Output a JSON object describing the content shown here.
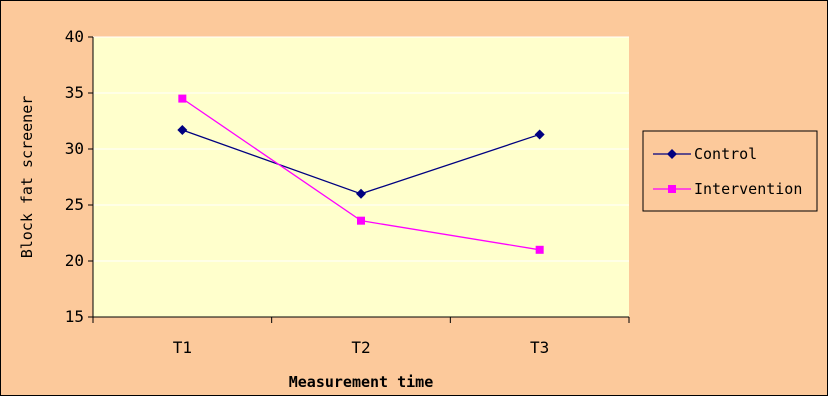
{
  "colors": {
    "background": "#fcc99b",
    "plot_area": "#ffffcc",
    "gridline": "#ffffff",
    "control": "#000080",
    "intervention": "#ff00ff"
  },
  "chart_data": {
    "type": "line",
    "title": "",
    "xlabel": "Measurement time",
    "ylabel": "Block fat screener",
    "categories": [
      "T1",
      "T2",
      "T3"
    ],
    "ylim": [
      15,
      40
    ],
    "yticks": [
      15,
      20,
      25,
      30,
      35,
      40
    ],
    "grid": true,
    "legend_position": "right",
    "series": [
      {
        "name": "Control",
        "values": [
          31.7,
          26.0,
          31.3
        ],
        "marker": "diamond",
        "color": "#000080"
      },
      {
        "name": "Intervention",
        "values": [
          34.5,
          23.6,
          21.0
        ],
        "marker": "square",
        "color": "#ff00ff"
      }
    ]
  }
}
